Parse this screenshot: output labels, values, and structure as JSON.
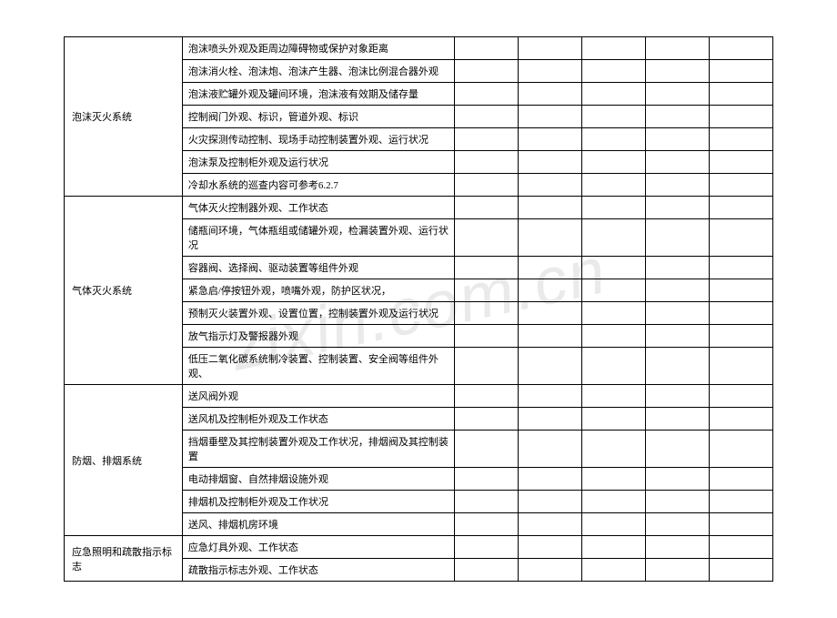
{
  "watermark": "zixin.com.cn",
  "table": {
    "groups": [
      {
        "category": "泡沫灭火系统",
        "rows": [
          "泡沫喷头外观及距周边障碍物或保护对象距离",
          "泡沫消火栓、泡沫炮、泡沫产生器、泡沫比例混合器外观",
          "泡沫液贮罐外观及罐间环境，泡沫液有效期及储存量",
          "控制阀门外观、标识，管道外观、标识",
          "火灾探测传动控制、现场手动控制装置外观、运行状况",
          "泡沫泵及控制柜外观及运行状况",
          "冷却水系统的巡查内容可参考6.2.7"
        ]
      },
      {
        "category": "气体灭火系统",
        "rows": [
          "气体灭火控制器外观、工作状态",
          "储瓶间环境，气体瓶组或储罐外观，检漏装置外观、运行状况",
          "容器阀、选择阀、驱动装置等组件外观",
          "紧急启/停按钮外观，喷嘴外观，防护区状况，",
          "预制灭火装置外观、设置位置，控制装置外观及运行状况",
          "放气指示灯及警报器外观",
          "低压二氧化碳系统制冷装置、控制装置、安全阀等组件外观、"
        ]
      },
      {
        "category": "防烟、排烟系统",
        "rows": [
          "送风阀外观",
          "送风机及控制柜外观及工作状态",
          "挡烟垂壁及其控制装置外观及工作状况，排烟阀及其控制装置",
          "电动排烟窗、自然排烟设施外观",
          "排烟机及控制柜外观及工作状况",
          "送风、排烟机房环境"
        ]
      },
      {
        "category": "应急照明和疏散指示标志",
        "rows": [
          "应急灯具外观、工作状态",
          "疏散指示标志外观、工作状态"
        ]
      }
    ],
    "blankColumns": 5
  }
}
